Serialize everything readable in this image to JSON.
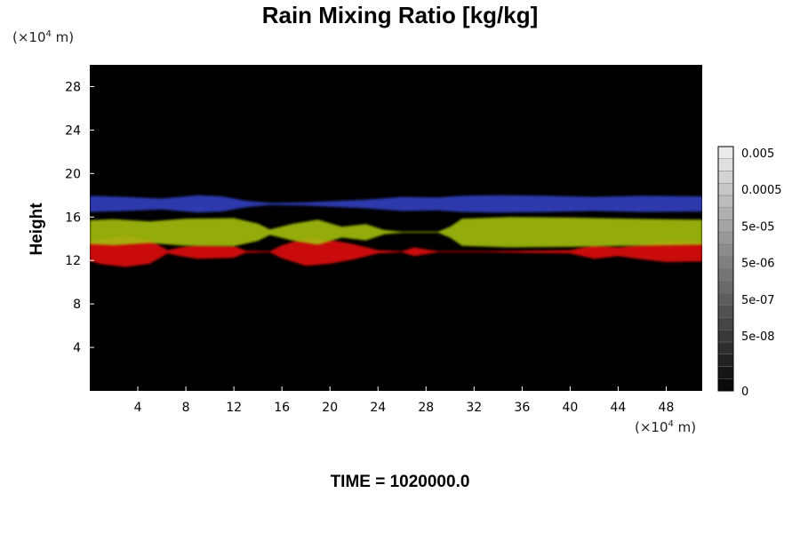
{
  "chart_data": {
    "type": "heatmap",
    "title": "Rain Mixing Ratio [kg/kg]",
    "xlabel": "",
    "ylabel": "Height",
    "x_unit_prefix": "(×10",
    "x_unit_exp": "4",
    "x_unit_suffix": " m)",
    "y_unit_prefix": "(×10",
    "y_unit_exp": "4",
    "y_unit_suffix": " m)",
    "xlim": [
      0,
      51
    ],
    "ylim": [
      0,
      30
    ],
    "x_ticks": [
      4,
      8,
      12,
      16,
      20,
      24,
      28,
      32,
      36,
      40,
      44,
      48
    ],
    "y_ticks": [
      4,
      8,
      12,
      16,
      20,
      24,
      28
    ],
    "background_color": "#000000",
    "layers": [
      {
        "color": "#e01010",
        "y_base": 12.8,
        "thickness": [
          [
            0,
            1.7
          ],
          [
            1,
            2.3
          ],
          [
            3,
            2.8
          ],
          [
            5,
            2.2
          ],
          [
            6.5,
            0.3
          ],
          [
            7.5,
            0.8
          ],
          [
            9,
            1.3
          ],
          [
            12,
            1.1
          ],
          [
            13,
            0.2
          ],
          [
            15,
            0.1
          ],
          [
            16,
            1.2
          ],
          [
            18,
            2.6
          ],
          [
            20,
            2.2
          ],
          [
            22,
            1.4
          ],
          [
            24,
            0.3
          ],
          [
            26,
            0.1
          ],
          [
            27,
            0.8
          ],
          [
            29,
            0.1
          ],
          [
            33,
            0.1
          ],
          [
            36,
            0.2
          ],
          [
            40,
            0.3
          ],
          [
            42,
            1.3
          ],
          [
            44,
            0.8
          ],
          [
            46,
            1.4
          ],
          [
            48,
            1.9
          ],
          [
            51,
            1.8
          ]
        ]
      },
      {
        "color": "#a4be08",
        "y_base": 14.6,
        "thickness": [
          [
            0,
            2.2
          ],
          [
            2,
            2.4
          ],
          [
            5,
            2.0
          ],
          [
            8,
            2.5
          ],
          [
            12,
            2.6
          ],
          [
            14,
            1.6
          ],
          [
            15,
            0.5
          ],
          [
            17,
            1.6
          ],
          [
            19,
            2.3
          ],
          [
            21,
            1.0
          ],
          [
            23,
            1.5
          ],
          [
            24.5,
            0.4
          ],
          [
            26,
            0.1
          ],
          [
            29,
            0.1
          ],
          [
            30,
            1.0
          ],
          [
            31,
            2.5
          ],
          [
            35,
            2.8
          ],
          [
            40,
            2.7
          ],
          [
            45,
            2.5
          ],
          [
            48,
            2.4
          ],
          [
            51,
            2.3
          ]
        ]
      },
      {
        "color": "#3040c0",
        "y_base": 17.2,
        "thickness": [
          [
            0,
            1.5
          ],
          [
            3,
            1.3
          ],
          [
            6,
            1.0
          ],
          [
            9,
            1.6
          ],
          [
            11,
            1.4
          ],
          [
            13,
            0.6
          ],
          [
            15,
            0.2
          ],
          [
            18,
            0.3
          ],
          [
            20,
            0.5
          ],
          [
            23,
            0.8
          ],
          [
            26,
            1.3
          ],
          [
            29,
            1.2
          ],
          [
            31,
            1.5
          ],
          [
            34,
            1.6
          ],
          [
            38,
            1.5
          ],
          [
            42,
            1.3
          ],
          [
            46,
            1.5
          ],
          [
            51,
            1.4
          ]
        ]
      }
    ],
    "colorbar": {
      "tick_labels": [
        "0.005",
        "0.0005",
        "5e-05",
        "5e-06",
        "5e-07",
        "5e-08",
        "0"
      ],
      "tick_levels": [
        19.5,
        16.5,
        13.5,
        10.5,
        7.5,
        4.5,
        0
      ],
      "levels": 20
    },
    "time_label": "TIME = 1020000.0"
  }
}
